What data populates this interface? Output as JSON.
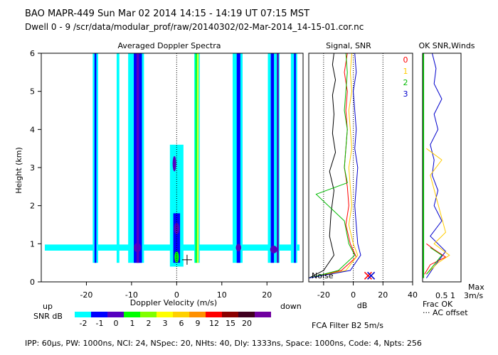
{
  "header": {
    "line1": "BAO   MAPR-449   Sun Mar 02 2014 14:15  -  14:19 UT 07:15 MST",
    "line2": "Dwell  0 -  9   /scr/data/modular_prof/raw/20140302/02-Mar-2014_14-15-01.cor.nc"
  },
  "colors": {
    "scale": [
      "#00ffff",
      "#0000ff",
      "#5500c0",
      "#00ff00",
      "#80ff00",
      "#ffff00",
      "#ffd000",
      "#ff9000",
      "#ff0000",
      "#8b0000",
      "#400020",
      "#7000a0"
    ],
    "beam0": "#ff0000",
    "beam1": "#ffcc00",
    "beam2": "#00bb00",
    "beam3": "#0000cc",
    "noise": "#000000",
    "fracok": "#00cc00",
    "snrline": "#0000cc"
  },
  "chart_data": [
    {
      "type": "heatmap",
      "title": "Averaged Doppler Spectra",
      "xlabel": "Doppler Velocity (m/s)",
      "ylabel": "Height (km)",
      "xlim": [
        -30,
        28
      ],
      "ylim": [
        0,
        6
      ],
      "xticks": [
        -20,
        -10,
        0,
        10,
        20
      ],
      "yticks": [
        0,
        1,
        2,
        3,
        4,
        5,
        6
      ],
      "labels": {
        "up": "up",
        "down": "down"
      },
      "colorbar": {
        "title": "SNR dB",
        "values": [
          "-2",
          "-1",
          "0",
          "1",
          "2",
          "3",
          "6",
          "9",
          "12",
          "15",
          "20"
        ]
      },
      "bands": [
        {
          "v": -18.0,
          "h0": 0.5,
          "h1": 6.0,
          "snr": -2,
          "w": 1.2
        },
        {
          "v": -18.0,
          "h0": 0.5,
          "h1": 6.0,
          "snr": -1,
          "w": 0.4
        },
        {
          "v": -13.0,
          "h0": 0.5,
          "h1": 6.0,
          "snr": -2,
          "w": 0.6
        },
        {
          "v": -9.0,
          "h0": 0.5,
          "h1": 6.0,
          "snr": -2,
          "w": 3.5
        },
        {
          "v": -8.6,
          "h0": 0.5,
          "h1": 6.0,
          "snr": -1,
          "w": 1.8
        },
        {
          "v": -8.6,
          "h0": 0.5,
          "h1": 6.0,
          "snr": 0,
          "w": 0.6
        },
        {
          "v": 0.0,
          "h0": 0.4,
          "h1": 3.6,
          "snr": -2,
          "w": 3.0
        },
        {
          "v": 0.0,
          "h0": 0.5,
          "h1": 1.8,
          "snr": -1,
          "w": 1.5
        },
        {
          "v": 4.5,
          "h0": 0.5,
          "h1": 6.0,
          "snr": -2,
          "w": 1.2
        },
        {
          "v": 4.7,
          "h0": 0.5,
          "h1": 6.0,
          "snr": 3,
          "w": 0.3
        },
        {
          "v": 4.3,
          "h0": 0.5,
          "h1": 6.0,
          "snr": 1,
          "w": 0.3
        },
        {
          "v": 13.5,
          "h0": 0.5,
          "h1": 6.0,
          "snr": -2,
          "w": 2.2
        },
        {
          "v": 13.7,
          "h0": 0.5,
          "h1": 6.0,
          "snr": -1,
          "w": 0.8
        },
        {
          "v": 21.5,
          "h0": 0.5,
          "h1": 6.0,
          "snr": -2,
          "w": 2.6
        },
        {
          "v": 21.2,
          "h0": 0.5,
          "h1": 6.0,
          "snr": -1,
          "w": 0.7
        },
        {
          "v": 22.4,
          "h0": 0.5,
          "h1": 6.0,
          "snr": 0,
          "w": 0.4
        },
        {
          "v": 26.0,
          "h0": 0.5,
          "h1": 6.0,
          "snr": -2,
          "w": 1.4
        },
        {
          "v": 26.2,
          "h0": 0.5,
          "h1": 6.0,
          "snr": -1,
          "w": 0.4
        }
      ],
      "blobs": [
        {
          "v": -8.7,
          "h": 0.9,
          "snr": 0,
          "rv": 0.8,
          "rh": 0.12
        },
        {
          "v": 0.0,
          "h": 0.65,
          "snr": 1,
          "rv": 0.5,
          "rh": 0.15
        },
        {
          "v": 0.0,
          "h": 1.4,
          "snr": 0,
          "rv": 0.6,
          "rh": 0.15
        },
        {
          "v": -0.5,
          "h": 3.1,
          "snr": 0,
          "rv": 0.4,
          "rh": 0.2
        },
        {
          "v": 13.7,
          "h": 0.9,
          "snr": 0,
          "rv": 0.6,
          "rh": 0.1
        },
        {
          "v": 21.5,
          "h": 0.85,
          "snr": 0,
          "rv": 0.8,
          "rh": 0.1
        }
      ],
      "nearsurface": {
        "h": 0.9,
        "snr": -2
      },
      "marker": {
        "v": 2.3,
        "h": 0.58
      }
    },
    {
      "type": "line",
      "title": "Signal, SNR",
      "xlabel": "dB",
      "xlim": [
        -30,
        40
      ],
      "ylim": [
        0,
        6
      ],
      "xticks": [
        -20,
        0,
        20,
        40
      ],
      "guides": [
        -20,
        0,
        20
      ],
      "legend": [
        {
          "label": "0",
          "color": "#ff0000"
        },
        {
          "label": "1",
          "color": "#ffcc00"
        },
        {
          "label": "2",
          "color": "#00bb00"
        },
        {
          "label": "3",
          "color": "#0000cc"
        }
      ],
      "noise_label": "Noise",
      "series": [
        {
          "name": "noise",
          "color": "#000000",
          "x": [
            -30,
            -20,
            -13,
            -16,
            -15,
            -13,
            -16,
            -12,
            -14,
            -13,
            -14,
            -12,
            -14,
            -13
          ],
          "h": [
            0.1,
            0.3,
            0.7,
            1.2,
            1.8,
            2.4,
            2.9,
            3.4,
            3.9,
            4.4,
            4.9,
            5.3,
            5.7,
            6.0
          ]
        },
        {
          "name": "0",
          "color": "#ff0000",
          "x": [
            -30,
            -8,
            2,
            -2,
            -5,
            -3,
            -4,
            -6,
            -5,
            -4,
            -5,
            -4,
            -6,
            -4
          ],
          "h": [
            0.1,
            0.3,
            0.65,
            1.0,
            1.5,
            2.0,
            2.5,
            3.0,
            3.5,
            4.0,
            4.5,
            5.0,
            5.5,
            6.0
          ]
        },
        {
          "name": "1",
          "color": "#ffcc00",
          "x": [
            -30,
            -5,
            3,
            0,
            -3,
            -1,
            -2,
            -3,
            -1,
            -2,
            -3,
            -1,
            -2,
            -1
          ],
          "h": [
            0.1,
            0.3,
            0.7,
            1.0,
            1.5,
            2.0,
            2.5,
            3.0,
            3.5,
            4.0,
            4.5,
            5.0,
            5.5,
            6.0
          ]
        },
        {
          "name": "2",
          "color": "#00bb00",
          "x": [
            -30,
            -10,
            1,
            -3,
            -6,
            -25,
            -4,
            -6,
            -5,
            -4,
            -6,
            -5,
            -4,
            -5
          ],
          "h": [
            0.1,
            0.3,
            0.7,
            1.0,
            1.6,
            2.3,
            2.6,
            3.0,
            3.5,
            4.0,
            4.5,
            5.0,
            5.5,
            6.0
          ]
        },
        {
          "name": "3",
          "color": "#0000cc",
          "x": [
            -30,
            -2,
            5,
            3,
            2,
            1,
            2,
            3,
            1,
            2,
            1,
            0,
            2,
            1
          ],
          "h": [
            0.1,
            0.3,
            0.7,
            1.0,
            1.5,
            2.0,
            2.5,
            3.0,
            3.5,
            4.0,
            4.5,
            5.0,
            5.5,
            6.0
          ]
        }
      ],
      "snr_markers": [
        {
          "x": 10,
          "h": 0.05,
          "color": "#ff0000"
        },
        {
          "x": 12,
          "h": 0.05,
          "color": "#0000cc"
        }
      ]
    },
    {
      "type": "line",
      "title": "OK SNR,Winds",
      "xlabels": {
        "axis": "0.5  1",
        "max": "Max",
        "max_value": "3m/s",
        "frac": "Frac OK",
        "offset": "··· AC offset"
      },
      "ylim": [
        0,
        6
      ],
      "series": [
        {
          "name": "snr",
          "color": "#0000cc",
          "x": [
            0.1,
            0.3,
            0.6,
            0.2,
            0.5,
            0.3,
            0.4,
            0.25,
            0.3,
            0.2,
            0.4,
            0.3,
            0.5,
            0.3,
            0.35,
            0.25
          ],
          "h": [
            0.1,
            0.4,
            0.8,
            1.2,
            1.6,
            2.0,
            2.4,
            2.8,
            3.2,
            3.6,
            4.0,
            4.4,
            4.8,
            5.2,
            5.6,
            6.0
          ]
        },
        {
          "name": "winds0",
          "color": "#ff0000",
          "x": [
            0.05,
            0.2,
            0.6,
            0.3,
            0.1
          ],
          "h": [
            0.2,
            0.45,
            0.65,
            0.85,
            1.0
          ]
        },
        {
          "name": "winds1",
          "color": "#ffcc00",
          "x": [
            0.1,
            0.4,
            0.7,
            0.3,
            0.6,
            0.2,
            0.5,
            0.1
          ],
          "h": [
            0.2,
            0.5,
            0.7,
            1.0,
            1.3,
            2.8,
            3.2,
            3.5
          ]
        },
        {
          "name": "winds2",
          "color": "#00bb00",
          "x": [
            0.1,
            0.3,
            0.5,
            0.2
          ],
          "h": [
            0.2,
            0.45,
            0.7,
            0.9
          ]
        },
        {
          "name": "fracok",
          "color": "#00cc00",
          "x": [
            0.02,
            0.02,
            0.02
          ],
          "h": [
            0.1,
            3.0,
            6.0
          ]
        }
      ]
    }
  ],
  "footer": {
    "filter": "FCA Filter B2  5m/s",
    "params": "IPP:  60µs,  PW: 1000ns,  NCI:  24,  NSpec: 20, NHts: 40,  Dly: 1333ns,  Space: 1000ns,  Code: 4,  Npts: 256"
  }
}
